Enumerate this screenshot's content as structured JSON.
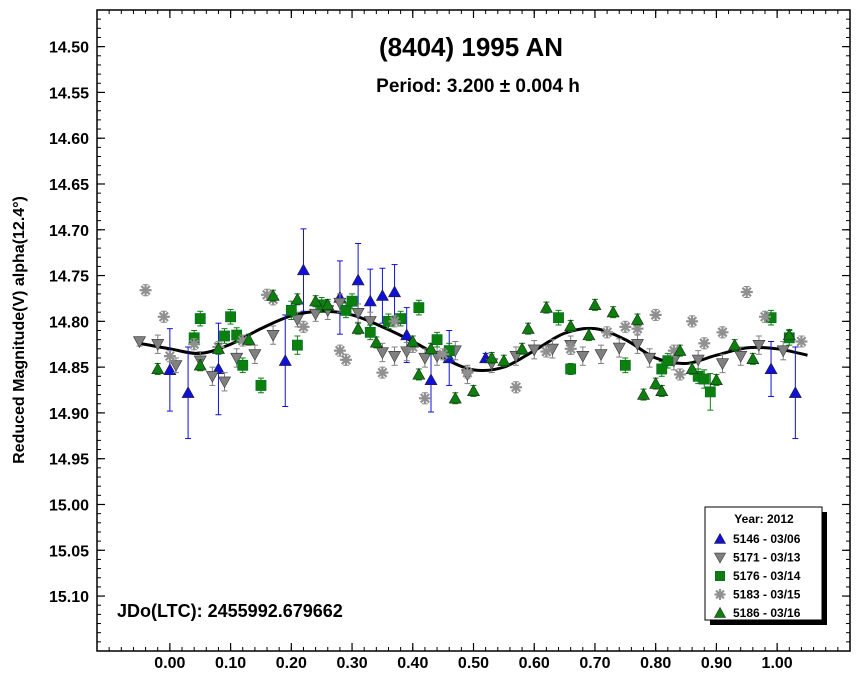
{
  "chart_data": {
    "type": "scatter",
    "title": "(8404) 1995 AN",
    "subtitle": "Period: 3.200 ± 0.004 h",
    "xlabel": "",
    "ylabel": "Reduced Magnitude(V) alpha(12.4°)",
    "annotation": "JDo(LTC): 2455992.679662",
    "xlim": [
      -0.12,
      1.12
    ],
    "ylim": [
      15.16,
      14.46
    ],
    "y_inverted": true,
    "grid": false,
    "legend_position": "bottom-right",
    "legend_title": "Year: 2012",
    "x_ticks": [
      "0.00",
      "0.10",
      "0.20",
      "0.30",
      "0.40",
      "0.50",
      "0.60",
      "0.70",
      "0.80",
      "0.90",
      "1.00"
    ],
    "y_ticks": [
      "14.50",
      "14.55",
      "14.60",
      "14.65",
      "14.70",
      "14.75",
      "14.80",
      "14.85",
      "14.90",
      "14.95",
      "15.00",
      "15.05",
      "15.10"
    ],
    "fit_curve": {
      "color": "#000000",
      "points": [
        [
          -0.05,
          14.824
        ],
        [
          0.0,
          14.83
        ],
        [
          0.05,
          14.835
        ],
        [
          0.1,
          14.825
        ],
        [
          0.15,
          14.808
        ],
        [
          0.2,
          14.794
        ],
        [
          0.25,
          14.789
        ],
        [
          0.3,
          14.793
        ],
        [
          0.35,
          14.806
        ],
        [
          0.4,
          14.822
        ],
        [
          0.45,
          14.84
        ],
        [
          0.5,
          14.853
        ],
        [
          0.55,
          14.85
        ],
        [
          0.6,
          14.832
        ],
        [
          0.65,
          14.813
        ],
        [
          0.7,
          14.808
        ],
        [
          0.75,
          14.82
        ],
        [
          0.8,
          14.84
        ],
        [
          0.85,
          14.846
        ],
        [
          0.9,
          14.837
        ],
        [
          0.95,
          14.829
        ],
        [
          1.0,
          14.83
        ],
        [
          1.05,
          14.837
        ]
      ]
    },
    "series": [
      {
        "name": "5146 - 03/06",
        "marker": "triangle-up",
        "color": "#1010d8",
        "points": [
          [
            0.0,
            14.853,
            0.045
          ],
          [
            0.03,
            14.878,
            0.05
          ],
          [
            0.08,
            14.852,
            0.05
          ],
          [
            0.19,
            14.843,
            0.05
          ],
          [
            0.22,
            14.744,
            0.045
          ],
          [
            0.28,
            14.774,
            0.04
          ],
          [
            0.31,
            14.755,
            0.04
          ],
          [
            0.33,
            14.778,
            0.035
          ],
          [
            0.35,
            14.772,
            0.03
          ],
          [
            0.37,
            14.768,
            0.03
          ],
          [
            0.39,
            14.815,
            0.03
          ],
          [
            0.43,
            14.864,
            0.035
          ],
          [
            0.46,
            14.84,
            0.03
          ],
          [
            0.52,
            14.84,
            0.005
          ],
          [
            0.99,
            14.852,
            0.03
          ],
          [
            1.03,
            14.878,
            0.05
          ]
        ]
      },
      {
        "name": "5171 - 03/13",
        "marker": "triangle-down",
        "color": "#808080",
        "points": [
          [
            -0.05,
            14.822,
            0.005
          ],
          [
            -0.02,
            14.825,
            0.01
          ],
          [
            0.01,
            14.848,
            0.008
          ],
          [
            0.05,
            14.843,
            0.01
          ],
          [
            0.07,
            14.86,
            0.01
          ],
          [
            0.09,
            14.866,
            0.01
          ],
          [
            0.11,
            14.84,
            0.01
          ],
          [
            0.14,
            14.836,
            0.01
          ],
          [
            0.17,
            14.815,
            0.01
          ],
          [
            0.21,
            14.798,
            0.008
          ],
          [
            0.24,
            14.792,
            0.008
          ],
          [
            0.26,
            14.788,
            0.01
          ],
          [
            0.28,
            14.78,
            0.01
          ],
          [
            0.31,
            14.791,
            0.01
          ],
          [
            0.33,
            14.8,
            0.01
          ],
          [
            0.35,
            14.834,
            0.01
          ],
          [
            0.37,
            14.838,
            0.01
          ],
          [
            0.39,
            14.833,
            0.01
          ],
          [
            0.42,
            14.84,
            0.01
          ],
          [
            0.44,
            14.838,
            0.01
          ],
          [
            0.47,
            14.832,
            0.01
          ],
          [
            0.49,
            14.858,
            0.01
          ],
          [
            0.53,
            14.846,
            0.01
          ],
          [
            0.57,
            14.838,
            0.01
          ],
          [
            0.6,
            14.831,
            0.01
          ],
          [
            0.63,
            14.83,
            0.01
          ],
          [
            0.66,
            14.826,
            0.01
          ],
          [
            0.68,
            14.838,
            0.01
          ],
          [
            0.71,
            14.836,
            0.01
          ],
          [
            0.74,
            14.829,
            0.01
          ],
          [
            0.77,
            14.825,
            0.01
          ],
          [
            0.79,
            14.84,
            0.01
          ],
          [
            0.83,
            14.843,
            0.01
          ],
          [
            0.87,
            14.842,
            0.01
          ],
          [
            0.91,
            14.846,
            0.01
          ],
          [
            0.94,
            14.838,
            0.01
          ],
          [
            0.97,
            14.826,
            0.01
          ],
          [
            1.01,
            14.832,
            0.01
          ]
        ]
      },
      {
        "name": "5176 - 03/14",
        "marker": "square",
        "color": "#0c800c",
        "points": [
          [
            0.04,
            14.818,
            0.008
          ],
          [
            0.05,
            14.797,
            0.008
          ],
          [
            0.09,
            14.816,
            0.008
          ],
          [
            0.1,
            14.795,
            0.008
          ],
          [
            0.11,
            14.815,
            0.008
          ],
          [
            0.12,
            14.848,
            0.008
          ],
          [
            0.15,
            14.87,
            0.008
          ],
          [
            0.2,
            14.788,
            0.01
          ],
          [
            0.21,
            14.826,
            0.01
          ],
          [
            0.25,
            14.782,
            0.008
          ],
          [
            0.29,
            14.788,
            0.008
          ],
          [
            0.3,
            14.778,
            0.008
          ],
          [
            0.33,
            14.812,
            0.008
          ],
          [
            0.36,
            14.8,
            0.008
          ],
          [
            0.38,
            14.797,
            0.008
          ],
          [
            0.41,
            14.785,
            0.008
          ],
          [
            0.44,
            14.82,
            0.008
          ],
          [
            0.46,
            14.832,
            0.008
          ],
          [
            0.64,
            14.796,
            0.008
          ],
          [
            0.66,
            14.852,
            0.006
          ],
          [
            0.75,
            14.848,
            0.008
          ],
          [
            0.81,
            14.852,
            0.008
          ],
          [
            0.82,
            14.843,
            0.008
          ],
          [
            0.87,
            14.86,
            0.008
          ],
          [
            0.88,
            14.863,
            0.01
          ],
          [
            0.89,
            14.877,
            0.02
          ],
          [
            0.99,
            14.796,
            0.008
          ],
          [
            1.02,
            14.818,
            0.008
          ]
        ]
      },
      {
        "name": "5183 - 03/15",
        "marker": "asterisk",
        "color": "#909090",
        "points": [
          [
            -0.04,
            14.766
          ],
          [
            -0.01,
            14.795
          ],
          [
            0.0,
            14.838
          ],
          [
            0.04,
            14.825
          ],
          [
            0.08,
            14.828
          ],
          [
            0.12,
            14.821
          ],
          [
            0.16,
            14.771
          ],
          [
            0.17,
            14.776
          ],
          [
            0.22,
            14.806
          ],
          [
            0.28,
            14.832
          ],
          [
            0.29,
            14.842
          ],
          [
            0.35,
            14.856
          ],
          [
            0.37,
            14.8
          ],
          [
            0.4,
            14.828
          ],
          [
            0.42,
            14.884
          ],
          [
            0.45,
            14.836
          ],
          [
            0.49,
            14.856
          ],
          [
            0.57,
            14.872
          ],
          [
            0.62,
            14.833
          ],
          [
            0.66,
            14.83
          ],
          [
            0.72,
            14.812
          ],
          [
            0.75,
            14.806
          ],
          [
            0.77,
            14.808
          ],
          [
            0.8,
            14.793
          ],
          [
            0.83,
            14.832
          ],
          [
            0.84,
            14.858
          ],
          [
            0.86,
            14.8
          ],
          [
            0.88,
            14.824
          ],
          [
            0.91,
            14.812
          ],
          [
            0.95,
            14.768
          ],
          [
            0.98,
            14.795
          ],
          [
            1.04,
            14.822
          ]
        ]
      },
      {
        "name": "5186 - 03/16",
        "marker": "triangle-up",
        "color": "#0c800c",
        "points": [
          [
            -0.02,
            14.852
          ],
          [
            0.05,
            14.848
          ],
          [
            0.08,
            14.83
          ],
          [
            0.13,
            14.82
          ],
          [
            0.17,
            14.772
          ],
          [
            0.21,
            14.776
          ],
          [
            0.24,
            14.778
          ],
          [
            0.26,
            14.782
          ],
          [
            0.31,
            14.808
          ],
          [
            0.34,
            14.823
          ],
          [
            0.4,
            14.822
          ],
          [
            0.41,
            14.858
          ],
          [
            0.43,
            14.83
          ],
          [
            0.47,
            14.884
          ],
          [
            0.5,
            14.876
          ],
          [
            0.53,
            14.84
          ],
          [
            0.55,
            14.843
          ],
          [
            0.58,
            14.83
          ],
          [
            0.59,
            14.808
          ],
          [
            0.62,
            14.785
          ],
          [
            0.66,
            14.805
          ],
          [
            0.69,
            14.815
          ],
          [
            0.7,
            14.782
          ],
          [
            0.73,
            14.79
          ],
          [
            0.77,
            14.798
          ],
          [
            0.78,
            14.88
          ],
          [
            0.8,
            14.868
          ],
          [
            0.81,
            14.876
          ],
          [
            0.84,
            14.832
          ],
          [
            0.86,
            14.852
          ],
          [
            0.9,
            14.864
          ],
          [
            0.93,
            14.826
          ],
          [
            0.96,
            14.841
          ],
          [
            1.02,
            14.815
          ]
        ]
      }
    ]
  }
}
